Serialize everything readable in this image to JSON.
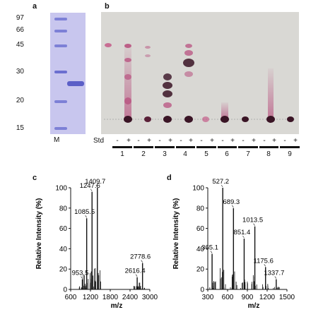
{
  "panel_a": {
    "letter": "a",
    "markers": [
      "97",
      "66",
      "45",
      "30",
      "20",
      "15"
    ],
    "lane_label": "M"
  },
  "panel_b": {
    "letter": "b",
    "std_label": "Std",
    "signs": [
      "-",
      "+",
      "-",
      "+",
      "-",
      "+",
      "-",
      "+",
      "-",
      "+",
      "-",
      "+",
      "-",
      "+",
      "-",
      "+",
      "-",
      "+"
    ],
    "lanes": [
      "1",
      "2",
      "3",
      "4",
      "5",
      "6",
      "7",
      "8",
      "9"
    ]
  },
  "panel_c": {
    "letter": "c",
    "ylabel": "Relative Intensity (%)",
    "xlabel": "m/z",
    "yticks": [
      "0",
      "20",
      "40",
      "60",
      "80",
      "100"
    ],
    "xticks": [
      "600",
      "1200",
      "1800",
      "2400",
      "3000"
    ],
    "xlim": [
      600,
      3000
    ],
    "ylim": [
      0,
      100
    ],
    "peaks": [
      {
        "mz": 953.5,
        "intensity": 10,
        "label": "953.5"
      },
      {
        "mz": 1085.5,
        "intensity": 70,
        "label": "1085.5"
      },
      {
        "mz": 1247.6,
        "intensity": 96,
        "label": "1247.6"
      },
      {
        "mz": 1409.7,
        "intensity": 100,
        "label": "1409.7"
      },
      {
        "mz": 2616.4,
        "intensity": 12,
        "label": "2616.4"
      },
      {
        "mz": 2778.6,
        "intensity": 26,
        "label": "2778.6"
      }
    ]
  },
  "panel_d": {
    "letter": "d",
    "ylabel": "Relative Intensity (%)",
    "xlabel": "m/z",
    "yticks": [
      "0",
      "20",
      "40",
      "60",
      "80",
      "100"
    ],
    "xticks": [
      "300",
      "600",
      "900",
      "1200",
      "1500"
    ],
    "xlim": [
      300,
      1500
    ],
    "ylim": [
      0,
      100
    ],
    "peaks": [
      {
        "mz": 365.1,
        "intensity": 35,
        "label": "365.1"
      },
      {
        "mz": 527.2,
        "intensity": 100,
        "label": "527.2"
      },
      {
        "mz": 689.3,
        "intensity": 80,
        "label": "689.3"
      },
      {
        "mz": 851.4,
        "intensity": 50,
        "label": "851.4"
      },
      {
        "mz": 1013.5,
        "intensity": 62,
        "label": "1013.5"
      },
      {
        "mz": 1175.6,
        "intensity": 22,
        "label": "1175.6"
      },
      {
        "mz": 1337.7,
        "intensity": 10,
        "label": "1337.7"
      }
    ]
  },
  "colors": {
    "gel_background": "#c8c6ee",
    "gel_band": "#5b5fc7",
    "tlc_background": "#d9d8d4",
    "tlc_spot": "#b0306a",
    "tlc_spot_dark": "#3a1425",
    "spectrum": "#111111"
  }
}
